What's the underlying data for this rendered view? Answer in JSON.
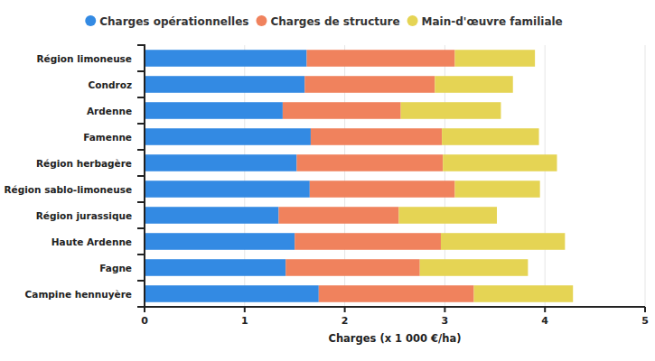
{
  "chart_data": {
    "type": "bar",
    "orientation": "horizontal",
    "stacked": true,
    "grid": true,
    "legend": "top",
    "xlabel": "Charges (x 1 000 €/ha)",
    "categories": [
      "Région limoneuse",
      "Condroz",
      "Ardenne",
      "Famenne",
      "Région herbagère",
      "Région sablo-limoneuse",
      "Région jurassique",
      "Haute Ardenne",
      "Fagne",
      "Campine hennuyère"
    ],
    "series": [
      {
        "name": "Charges opérationnelles",
        "color": "#338ae3",
        "values": [
          1.62,
          1.6,
          1.38,
          1.66,
          1.52,
          1.65,
          1.34,
          1.5,
          1.41,
          1.74
        ]
      },
      {
        "name": "Charges de structure",
        "color": "#f0825d",
        "values": [
          1.48,
          1.3,
          1.18,
          1.31,
          1.46,
          1.45,
          1.2,
          1.46,
          1.34,
          1.55
        ]
      },
      {
        "name": "Main-d'œuvre familiale",
        "color": "#e5d454",
        "values": [
          0.8,
          0.78,
          1.0,
          0.97,
          1.14,
          0.85,
          0.98,
          1.24,
          1.08,
          0.99
        ]
      }
    ],
    "xlim": [
      0,
      5
    ],
    "xticks": [
      0,
      1,
      2,
      3,
      4,
      5
    ]
  }
}
